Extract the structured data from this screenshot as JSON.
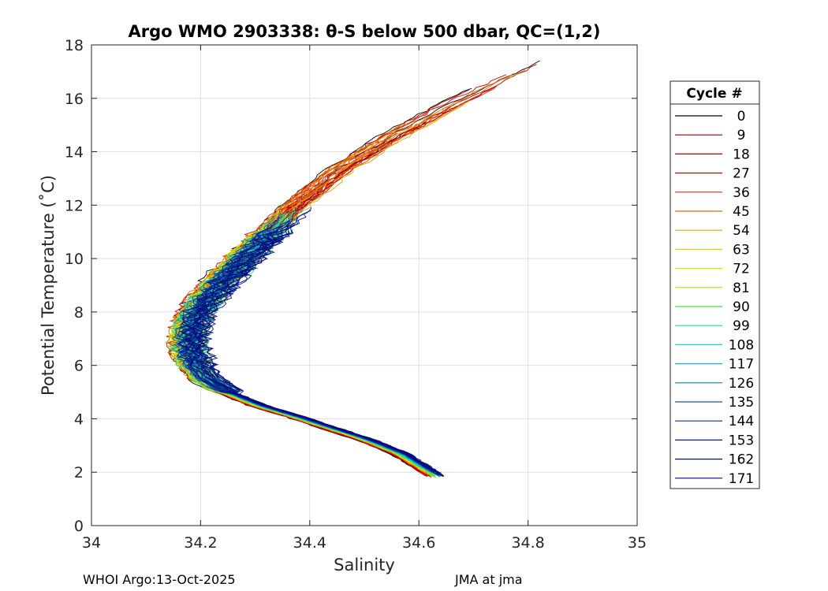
{
  "chart_data": {
    "type": "line",
    "title": "Argo WMO 2903338: θ-S below 500 dbar,  QC=(1,2)",
    "xlabel": "Salinity",
    "ylabel": "Potential Temperature (˚C)",
    "xlim": [
      34,
      35
    ],
    "ylim": [
      0,
      18
    ],
    "xticks": [
      "34",
      "34.2",
      "34.4",
      "34.6",
      "34.8",
      "35"
    ],
    "yticks": [
      "0",
      "2",
      "4",
      "6",
      "8",
      "10",
      "12",
      "14",
      "16",
      "18"
    ],
    "grid": true,
    "legend_title": "Cycle #",
    "legend_position": "right-outside",
    "legend": [
      {
        "label": "0",
        "color": "#000000"
      },
      {
        "label": "9",
        "color": "#8b0000"
      },
      {
        "label": "18",
        "color": "#b40000"
      },
      {
        "label": "27",
        "color": "#dc0000"
      },
      {
        "label": "36",
        "color": "#e62e00"
      },
      {
        "label": "45",
        "color": "#e36a00"
      },
      {
        "label": "54",
        "color": "#e2a000"
      },
      {
        "label": "63",
        "color": "#e6d200"
      },
      {
        "label": "72",
        "color": "#d4e600"
      },
      {
        "label": "81",
        "color": "#9ee600"
      },
      {
        "label": "90",
        "color": "#3ce63c"
      },
      {
        "label": "99",
        "color": "#12e68a"
      },
      {
        "label": "108",
        "color": "#12e0c8"
      },
      {
        "label": "117",
        "color": "#12b4dc"
      },
      {
        "label": "126",
        "color": "#0a82b4"
      },
      {
        "label": "135",
        "color": "#0a5ab4"
      },
      {
        "label": "144",
        "color": "#08309c"
      },
      {
        "label": "153",
        "color": "#061e82"
      },
      {
        "label": "162",
        "color": "#04146e"
      },
      {
        "label": "171",
        "color": "#000a8c"
      }
    ],
    "series_shape": {
      "description": "Envelope of theta-S profiles shared by all cycles",
      "salinity": [
        34.63,
        34.6,
        34.56,
        34.5,
        34.44,
        34.38,
        34.3,
        34.24,
        34.2,
        34.18,
        34.17,
        34.17,
        34.18,
        34.21,
        34.25,
        34.29,
        34.33,
        34.37
      ],
      "theta": [
        1.8,
        2.2,
        2.7,
        3.2,
        3.6,
        4.0,
        4.5,
        5.0,
        5.5,
        6.0,
        6.6,
        7.2,
        7.9,
        8.7,
        9.6,
        10.4,
        11.2,
        12.0
      ]
    },
    "warm_extension": {
      "salinity": [
        34.37,
        34.45,
        34.55,
        34.65,
        34.74,
        34.83
      ],
      "theta": [
        12.0,
        13.3,
        14.6,
        15.7,
        16.6,
        17.5
      ]
    }
  },
  "footer": {
    "left": "WHOI Argo:13-Oct-2025",
    "right": "JMA at jma"
  }
}
